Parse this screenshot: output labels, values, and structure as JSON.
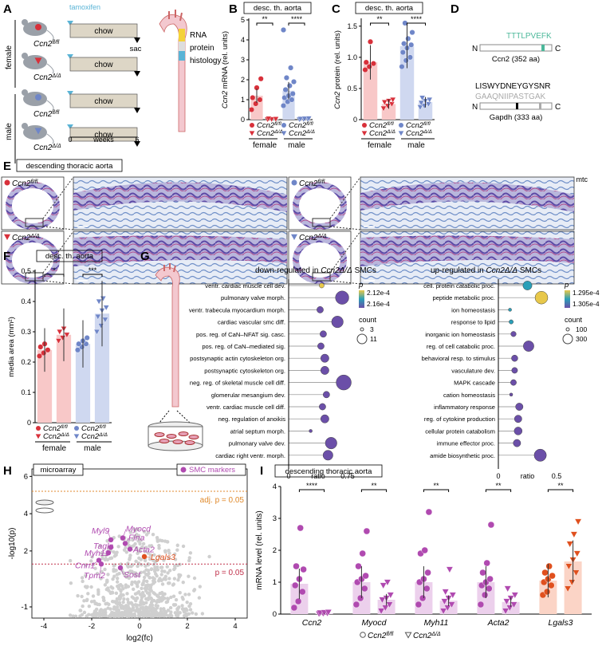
{
  "panels": {
    "A": {
      "letter": "A",
      "treatment": "tamoxifen",
      "groups": [
        "female",
        "male"
      ],
      "mice": [
        "Ccn2fl/fl",
        "Ccn2Δ/Δ",
        "Ccn2fl/fl",
        "Ccn2Δ/Δ"
      ],
      "diet": "chow",
      "endpoint": "sac",
      "axis_label": "weeks",
      "axis_ticks": [
        "0",
        "6"
      ],
      "analyses": [
        "RNA",
        "protein",
        "histology"
      ]
    },
    "B": {
      "letter": "B",
      "box_title": "desc. th. aorta",
      "ylabel": "Ccn2 mRNA (rel. units)",
      "yticks": [
        "0",
        "1",
        "2",
        "3",
        "4",
        "5"
      ],
      "sig": [
        "**",
        "****"
      ]
    },
    "C": {
      "letter": "C",
      "box_title": "desc. th. aorta",
      "ylabel": "Ccn2 protein (rel. units)",
      "yticks": [
        "0",
        "0.5",
        "1.0",
        "1.5"
      ],
      "sig": [
        "**",
        "****"
      ]
    },
    "D": {
      "letter": "D",
      "n": "N",
      "c": "C",
      "ccn2_peptide": "TTTLPVEFK",
      "ccn2_label": "Ccn2 (352 aa)",
      "gapdh_peptide1": "LISWYDNEYGYSNR",
      "gapdh_peptide2": "GAAQNIIPASTGAK",
      "gapdh_label": "Gapdh (333 aa)"
    },
    "E": {
      "letter": "E",
      "box_title": "descending thoracic aorta",
      "stain": "mtc",
      "labels": [
        "Ccn2fl/fl",
        "Ccn2fl/fl",
        "Ccn2Δ/Δ",
        "Ccn2Δ/Δ"
      ]
    },
    "F": {
      "letter": "F",
      "box_title": "desc. th. aorta",
      "ylabel": "media area (mm²)",
      "yticks": [
        "0",
        "0.1",
        "0.2",
        "0.3",
        "0.4",
        "0.5"
      ],
      "sig": [
        "*",
        "***"
      ]
    },
    "G": {
      "letter": "G",
      "down_title_pre": "down-regulated in ",
      "down_title_gene": "Ccn2Δ/Δ",
      "down_title_post": " SMCs",
      "up_title_pre": "up-regulated in ",
      "up_title_gene": "Ccn2Δ/Δ",
      "up_title_post": " SMCs",
      "down_terms": [
        "ventr. cardiac muscle cell dev.",
        "pulmonary valve morph.",
        "ventr. trabecula myocardium morph.",
        "cardiac vascular smc diff.",
        "pos. reg. of CaN–NFAT sig. casc.",
        "pos. reg. of CaN–mediated sig.",
        "postsynaptic actin cytoskeleton org.",
        "postsynaptic cytoskeleton org.",
        "neg. reg. of skeletal muscle cell diff.",
        "glomerular mesangium dev.",
        "ventr. cardiac muscle cell diff.",
        "neg. regulation of anoikis",
        "atrial septum morph.",
        "pulmonary valve dev.",
        "cardiac right ventr. morph."
      ],
      "up_terms": [
        "cell. protein catabolic proc.",
        "peptide metabolic proc.",
        "ion homeostasis",
        "response to lipid",
        "inorganic ion homeostasis",
        "reg. of cell catabolic proc.",
        "behavioral resp. to stimulus",
        "vasculature dev.",
        "MAPK cascade",
        "cation homeostasis",
        "inflammatory response",
        "reg. of cytokine production",
        "cellular protein catabolism",
        "immune effector proc.",
        "amide biosynthetic proc."
      ],
      "down_ratio": [
        0.42,
        0.68,
        0.4,
        0.62,
        0.44,
        0.41,
        0.46,
        0.46,
        0.7,
        0.48,
        0.43,
        0.46,
        0.28,
        0.54,
        0.5
      ],
      "down_count": [
        4,
        9,
        5,
        8,
        5,
        5,
        6,
        6,
        10,
        5,
        5,
        6,
        3,
        8,
        7
      ],
      "down_p": [
        0.000212,
        0.000216,
        0.000216,
        0.000216,
        0.000215,
        0.000216,
        0.000216,
        0.000216,
        0.000216,
        0.000216,
        0.000216,
        0.000216,
        0.000216,
        0.000216,
        0.000216
      ],
      "up_ratio": [
        0.25,
        0.37,
        0.1,
        0.11,
        0.13,
        0.26,
        0.14,
        0.14,
        0.13,
        0.11,
        0.18,
        0.17,
        0.17,
        0.16,
        0.36
      ],
      "up_count": [
        200,
        270,
        90,
        110,
        130,
        230,
        150,
        140,
        140,
        90,
        170,
        170,
        180,
        170,
        260
      ],
      "up_p": [
        0.0001297,
        0.0001296,
        0.0001299,
        0.00013,
        0.0001301,
        0.0001303,
        0.0001302,
        0.0001303,
        0.0001303,
        0.0001304,
        0.0001305,
        0.0001304,
        0.0001305,
        0.0001305,
        0.0001305
      ],
      "down_xlabel": "ratio",
      "down_xticks": [
        "0",
        "0.75"
      ],
      "up_xlabel": "ratio",
      "up_xticks": [
        "0",
        "0.5"
      ],
      "p_label": "p",
      "down_p_legend": [
        "2.12e-4",
        "2.16e-4"
      ],
      "up_p_legend": [
        "1.295e-4",
        "1.305e-4"
      ],
      "count_label": "count",
      "down_count_legend": [
        "3",
        "11"
      ],
      "up_count_legend": [
        "100",
        "300"
      ]
    },
    "H": {
      "letter": "H",
      "box_title": "microarray",
      "legend": "SMC markers",
      "adj_label": "adj. p = 0.05",
      "p_label": "p = 0.05",
      "xlabel": "log2(fc)",
      "ylabel": "-log10(p)",
      "xticks": [
        "-4",
        "-2",
        "0",
        "2",
        "4"
      ],
      "yticks": [
        "-1",
        "2",
        "4",
        "6"
      ],
      "genes": [
        "Myl9",
        "Myocd",
        "Flna",
        "Tagln",
        "Acta2",
        "Myh11",
        "Lgals3",
        "Cnn1",
        "Tpm2",
        "Sost"
      ]
    },
    "I": {
      "letter": "I",
      "box_title": "descending thoracic aorta",
      "ylabel": "mRNA level (rel. units)",
      "yticks": [
        "0",
        "1",
        "2",
        "3",
        "4"
      ],
      "genes": [
        "Ccn2",
        "Myocd",
        "Myh11",
        "Acta2",
        "Lgals3"
      ],
      "sig": [
        "****",
        "**",
        "**",
        "**",
        "**"
      ],
      "legend": [
        "Ccn2fl/fl",
        "Ccn2Δ/Δ"
      ]
    }
  },
  "chart_data": [
    {
      "type": "bar",
      "panel": "B",
      "categories": [
        "female",
        "male"
      ],
      "ylabel": "Ccn2 mRNA (rel. units)",
      "ylim": [
        0,
        5
      ],
      "series": [
        {
          "name": "Ccn2fl/fl",
          "values": [
            1.2,
            1.45
          ]
        },
        {
          "name": "Ccn2Δ/Δ",
          "values": [
            0.02,
            0.03
          ]
        }
      ],
      "points": {
        "ff_f": [
          0.5,
          0.8,
          1.0,
          1.1,
          1.6,
          2.05
        ],
        "dd_f": [
          0.01,
          0.02,
          0.03,
          0.05
        ],
        "ff_m": [
          0.7,
          0.9,
          1.0,
          1.1,
          1.2,
          1.3,
          1.5,
          1.7,
          1.9,
          2.1,
          2.6,
          4.5
        ],
        "dd_m": [
          0.01,
          0.02,
          0.03,
          0.04,
          0.05,
          0.06
        ]
      }
    },
    {
      "type": "bar",
      "panel": "C",
      "categories": [
        "female",
        "male"
      ],
      "ylabel": "Ccn2 protein (rel. units)",
      "ylim": [
        0,
        1.6
      ],
      "series": [
        {
          "name": "Ccn2fl/fl",
          "values": [
            0.92,
            1.18
          ]
        },
        {
          "name": "Ccn2Δ/Δ",
          "values": [
            0.25,
            0.28
          ]
        }
      ],
      "points": {
        "ff_f": [
          0.8,
          0.85,
          0.9,
          0.92,
          1.25
        ],
        "dd_f": [
          0.18,
          0.22,
          0.25,
          0.28,
          0.3,
          0.32
        ],
        "ff_m": [
          0.85,
          0.95,
          1.0,
          1.08,
          1.15,
          1.2,
          1.22,
          1.3,
          1.4,
          1.55
        ],
        "dd_m": [
          0.2,
          0.22,
          0.25,
          0.27,
          0.3,
          0.32,
          0.35
        ]
      }
    },
    {
      "type": "bar",
      "panel": "F",
      "categories": [
        "female",
        "male"
      ],
      "ylabel": "media area (mm²)",
      "ylim": [
        0,
        0.5
      ],
      "series": [
        {
          "name": "Ccn2fl/fl",
          "values": [
            0.24,
            0.26
          ]
        },
        {
          "name": "Ccn2Δ/Δ",
          "values": [
            0.29,
            0.36
          ]
        }
      ],
      "points": {
        "ff_f": [
          0.22,
          0.23,
          0.24,
          0.25,
          0.26
        ],
        "dd_f": [
          0.27,
          0.28,
          0.29,
          0.3,
          0.31
        ],
        "ff_m": [
          0.24,
          0.25,
          0.26,
          0.26,
          0.27,
          0.28
        ],
        "dd_m": [
          0.3,
          0.32,
          0.34,
          0.35,
          0.37,
          0.38,
          0.4,
          0.41
        ]
      }
    },
    {
      "type": "bar",
      "panel": "I",
      "categories": [
        "Ccn2",
        "Myocd",
        "Myh11",
        "Acta2",
        "Lgals3"
      ],
      "ylabel": "mRNA level (rel. units)",
      "ylim": [
        0,
        4
      ],
      "series": [
        {
          "name": "Ccn2fl/fl",
          "values": [
            0.95,
            1.0,
            1.0,
            1.0,
            1.05
          ]
        },
        {
          "name": "Ccn2Δ/Δ",
          "values": [
            0.02,
            0.45,
            0.42,
            0.38,
            1.65
          ]
        }
      ],
      "points": {
        "ff": [
          [
            0.2,
            0.4,
            0.7,
            0.9,
            1.1,
            1.4,
            1.5,
            2.7
          ],
          [
            0.3,
            0.5,
            0.8,
            1.0,
            1.1,
            1.2,
            1.5,
            1.9,
            2.6
          ],
          [
            0.3,
            0.5,
            0.8,
            1.0,
            1.1,
            1.3,
            1.9,
            2.0,
            3.2
          ],
          [
            0.3,
            0.6,
            0.8,
            0.9,
            1.0,
            1.1,
            1.3,
            1.6,
            2.8
          ],
          [
            0.6,
            0.7,
            0.9,
            1.0,
            1.1,
            1.2,
            1.3,
            1.5
          ]
        ],
        "dd": [
          [
            0.01,
            0.02,
            0.03,
            0.04,
            0.05,
            0.06
          ],
          [
            0.1,
            0.2,
            0.3,
            0.45,
            0.5,
            0.6,
            0.9,
            1.0
          ],
          [
            0.1,
            0.2,
            0.3,
            0.4,
            0.5,
            0.6,
            0.7,
            1.4
          ],
          [
            0.1,
            0.2,
            0.3,
            0.4,
            0.5,
            0.6,
            0.8
          ],
          [
            0.8,
            1.0,
            1.3,
            1.5,
            1.7,
            1.9,
            2.2,
            2.5,
            2.9
          ]
        ]
      }
    },
    {
      "type": "scatter",
      "panel": "H",
      "xlabel": "log2(fc)",
      "ylabel": "-log10(p)",
      "xlim": [
        -4.5,
        4.5
      ],
      "highlighted": [
        {
          "label": "Myl9",
          "x": -1.2,
          "y": 2.6
        },
        {
          "label": "Myocd",
          "x": -0.7,
          "y": 2.7
        },
        {
          "label": "Flna",
          "x": -0.6,
          "y": 2.4
        },
        {
          "label": "Tagln",
          "x": -1.2,
          "y": 2.2
        },
        {
          "label": "Acta2",
          "x": -0.4,
          "y": 2.1
        },
        {
          "label": "Myh11",
          "x": -1.3,
          "y": 1.9
        },
        {
          "label": "Lgals3",
          "x": 0.2,
          "y": 1.7
        },
        {
          "label": "Cnn1",
          "x": -1.7,
          "y": 1.5
        },
        {
          "label": "Tpm2",
          "x": -1.6,
          "y": 1.3
        },
        {
          "label": "Sost",
          "x": -0.8,
          "y": 1.1
        }
      ]
    }
  ]
}
